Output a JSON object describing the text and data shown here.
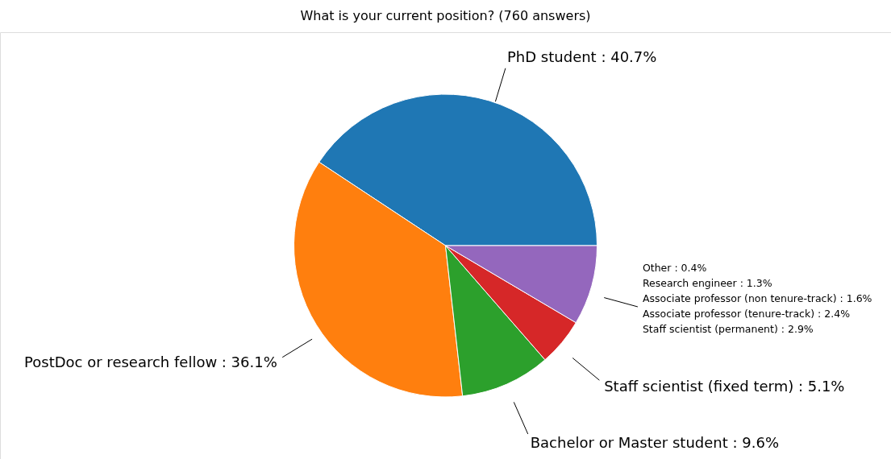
{
  "chart_data": {
    "type": "pie",
    "title": "What is your current position? (760 answers)",
    "categories": [
      "PhD student : 40.7%",
      "PostDoc or research fellow : 36.1%",
      "Bachelor or Master student : 9.6%",
      "Staff scientist (fixed term) : 5.1%",
      null
    ],
    "values": [
      40.7,
      36.1,
      9.6,
      5.1,
      8.5
    ],
    "colors": [
      "#1f77b4",
      "#ff7f0e",
      "#2ca02c",
      "#d62728",
      "#9467bd"
    ],
    "annotations": [
      "Other : 0.4%",
      "Research engineer : 1.3%",
      "Associate professor (non tenure-track) : 1.6%",
      "Associate professor (tenure-track) : 2.4%",
      "Staff scientist (permanent) : 2.9%"
    ]
  }
}
